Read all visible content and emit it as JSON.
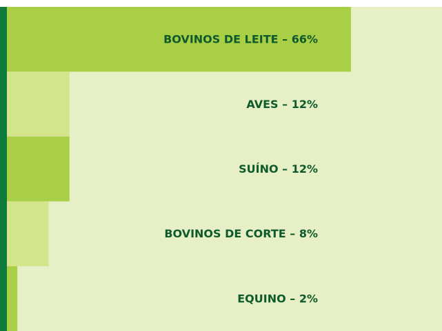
{
  "chart_data": {
    "type": "bar",
    "values": [
      66,
      12,
      12,
      8,
      2
    ],
    "value_labels": [
      "BOVINOS DE LEITE – 66%",
      "AVES – 12%",
      "SUÍNO – 12%",
      "BOVINOS DE CORTE – 8%",
      "EQUINO – 2%"
    ],
    "colors": [
      "#a9cf46",
      "#d3e48b",
      "#a9cf46",
      "#d3e48b",
      "#a9cf46"
    ]
  }
}
